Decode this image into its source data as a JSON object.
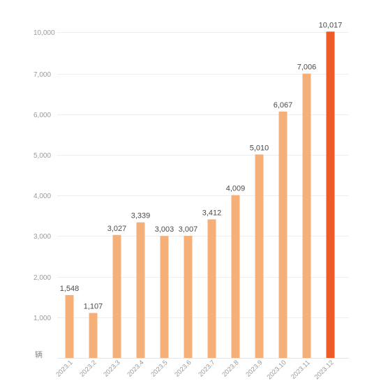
{
  "chart_data": {
    "type": "bar",
    "unit_label": "辆",
    "categories": [
      "2023.1",
      "2023.2",
      "2023.3",
      "2023.4",
      "2023.5",
      "2023.6",
      "2023.7",
      "2023.8",
      "2023.9",
      "2023.10",
      "2023.11",
      "2023.12"
    ],
    "values": [
      1548,
      1107,
      3027,
      3339,
      3003,
      3007,
      3412,
      4009,
      5010,
      6067,
      7006,
      10017
    ],
    "value_labels": [
      "1,548",
      "1,107",
      "3,027",
      "3,339",
      "3,003",
      "3,007",
      "3,412",
      "4,009",
      "5,010",
      "6,067",
      "7,006",
      "10,017"
    ],
    "y_ticks": [
      {
        "value": 1000,
        "label": "1,000"
      },
      {
        "value": 2000,
        "label": "2,000"
      },
      {
        "value": 3000,
        "label": "3,000"
      },
      {
        "value": 4000,
        "label": "4,000"
      },
      {
        "value": 5000,
        "label": "5,000"
      },
      {
        "value": 6000,
        "label": "6,000"
      },
      {
        "value": 7000,
        "label": "7,000"
      },
      {
        "value": 10000,
        "label": "10,000"
      }
    ],
    "axis_break": {
      "from": 7000,
      "to": 10000
    },
    "grid": true,
    "legend": false,
    "colors": {
      "bar": "#f5b07a",
      "highlight": "#f05a28"
    },
    "highlight_index": 11
  }
}
